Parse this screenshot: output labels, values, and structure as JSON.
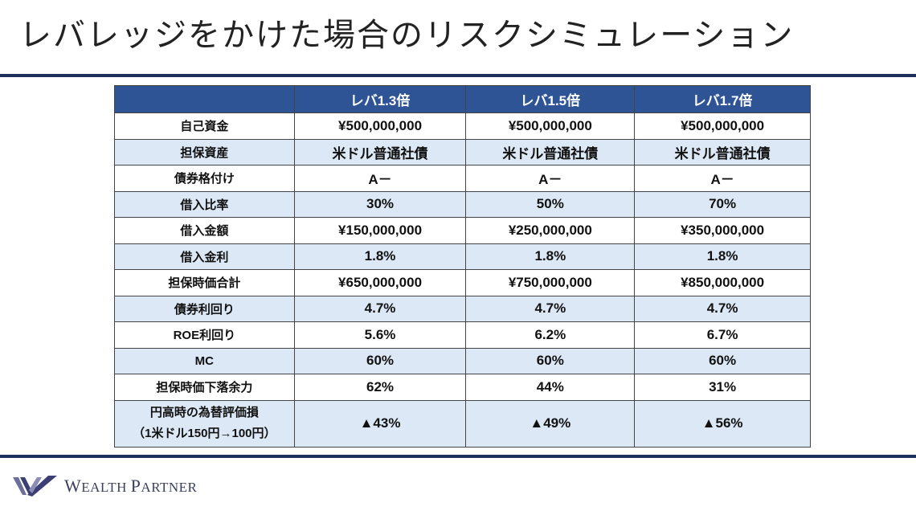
{
  "title": "レバレッジをかけた場合のリスクシミュレーション",
  "table": {
    "headers": [
      "",
      "レバ1.3倍",
      "レバ1.5倍",
      "レバ1.7倍"
    ],
    "rows": [
      {
        "label": "自己資金",
        "values": [
          "¥500,000,000",
          "¥500,000,000",
          "¥500,000,000"
        ]
      },
      {
        "label": "担保資産",
        "values": [
          "米ドル普通社債",
          "米ドル普通社債",
          "米ドル普通社債"
        ]
      },
      {
        "label": "債券格付け",
        "values": [
          "A－",
          "A－",
          "A－"
        ]
      },
      {
        "label": "借入比率",
        "values": [
          "30%",
          "50%",
          "70%"
        ]
      },
      {
        "label": "借入金額",
        "values": [
          "¥150,000,000",
          "¥250,000,000",
          "¥350,000,000"
        ]
      },
      {
        "label": "借入金利",
        "values": [
          "1.8%",
          "1.8%",
          "1.8%"
        ]
      },
      {
        "label": "担保時価合計",
        "values": [
          "¥650,000,000",
          "¥750,000,000",
          "¥850,000,000"
        ]
      },
      {
        "label": "債券利回り",
        "values": [
          "4.7%",
          "4.7%",
          "4.7%"
        ]
      },
      {
        "label": "ROE利回り",
        "values": [
          "5.6%",
          "6.2%",
          "6.7%"
        ]
      },
      {
        "label": "MC",
        "values": [
          "60%",
          "60%",
          "60%"
        ]
      },
      {
        "label": "担保時価下落余力",
        "values": [
          "62%",
          "44%",
          "31%"
        ]
      },
      {
        "label": "円高時の為替評価損",
        "sublabel": "（1米ドル150円→100円）",
        "values": [
          "▲43%",
          "▲49%",
          "▲56%"
        ]
      }
    ]
  },
  "logo": {
    "initial_w": "W",
    "rest_w": "EALTH ",
    "initial_p": "P",
    "rest_p": "ARTNER"
  },
  "colors": {
    "header": "#2f5496",
    "stripe": "#dce8f5",
    "rule": "#1d2f5a"
  }
}
